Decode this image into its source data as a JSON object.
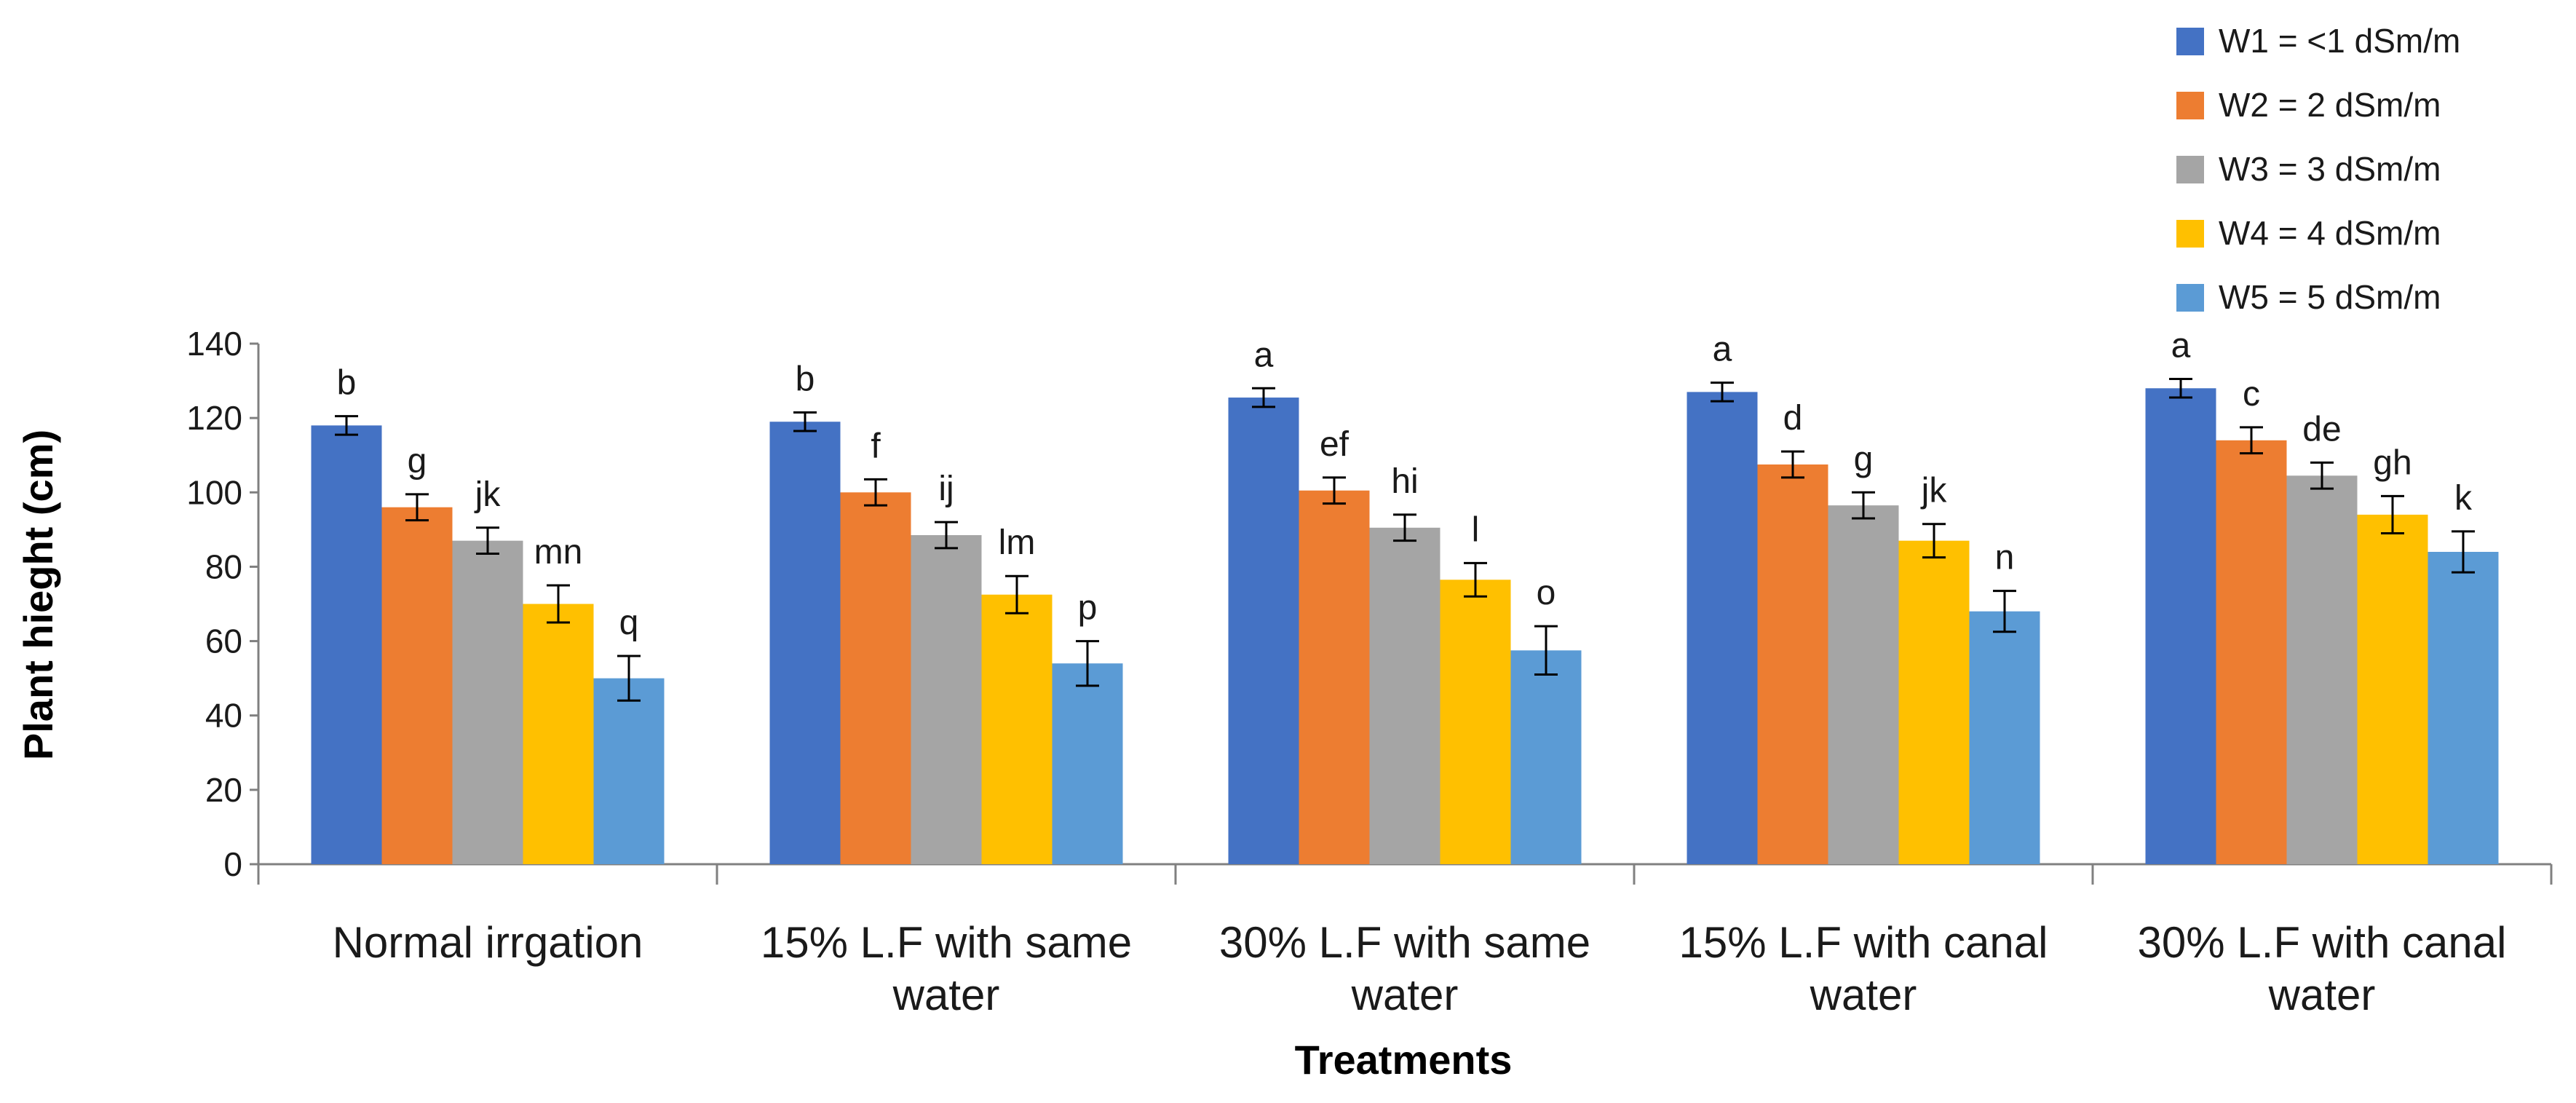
{
  "chart_data": {
    "type": "bar",
    "title": "",
    "xlabel": "Treatments",
    "ylabel": "Plant hieght (cm)",
    "ylim": [
      0,
      140
    ],
    "yticks": [
      0,
      20,
      40,
      60,
      80,
      100,
      120,
      140
    ],
    "grid": false,
    "legend_position": "top-right",
    "categories": [
      [
        "Normal irrgation"
      ],
      [
        "15% L.F with same",
        "water"
      ],
      [
        "30% L.F with same",
        "water"
      ],
      [
        "15% L.F with canal",
        "water"
      ],
      [
        "30% L.F with canal",
        "water"
      ]
    ],
    "series": [
      {
        "name": "W1 = <1 dSm/m",
        "color": "#4472C4",
        "values": [
          118,
          119,
          125.5,
          127,
          128
        ],
        "errors": [
          2.5,
          2.5,
          2.5,
          2.5,
          2.5
        ],
        "labels": [
          "b",
          "b",
          "a",
          "a",
          "a"
        ]
      },
      {
        "name": "W2 = 2 dSm/m",
        "color": "#ED7D31",
        "values": [
          96,
          100,
          100.5,
          107.5,
          114
        ],
        "errors": [
          3.5,
          3.5,
          3.5,
          3.5,
          3.5
        ],
        "labels": [
          "g",
          "f",
          "ef",
          "d",
          "c"
        ]
      },
      {
        "name": "W3 = 3 dSm/m",
        "color": "#A5A5A5",
        "values": [
          87,
          88.5,
          90.5,
          96.5,
          104.5
        ],
        "errors": [
          3.5,
          3.5,
          3.5,
          3.5,
          3.5
        ],
        "labels": [
          "jk",
          "ij",
          "hi",
          "g",
          "de"
        ]
      },
      {
        "name": "W4 = 4 dSm/m",
        "color": "#FFC000",
        "values": [
          70,
          72.5,
          76.5,
          87,
          94
        ],
        "errors": [
          5,
          5,
          4.5,
          4.5,
          5
        ],
        "labels": [
          "mn",
          "lm",
          "l",
          "jk",
          "gh"
        ]
      },
      {
        "name": "W5 = 5 dSm/m",
        "color": "#5B9BD5",
        "values": [
          50,
          54,
          57.5,
          68,
          84
        ],
        "errors": [
          6,
          6,
          6.5,
          5.5,
          5.5
        ],
        "labels": [
          "q",
          "p",
          "o",
          "n",
          "k"
        ]
      }
    ]
  }
}
